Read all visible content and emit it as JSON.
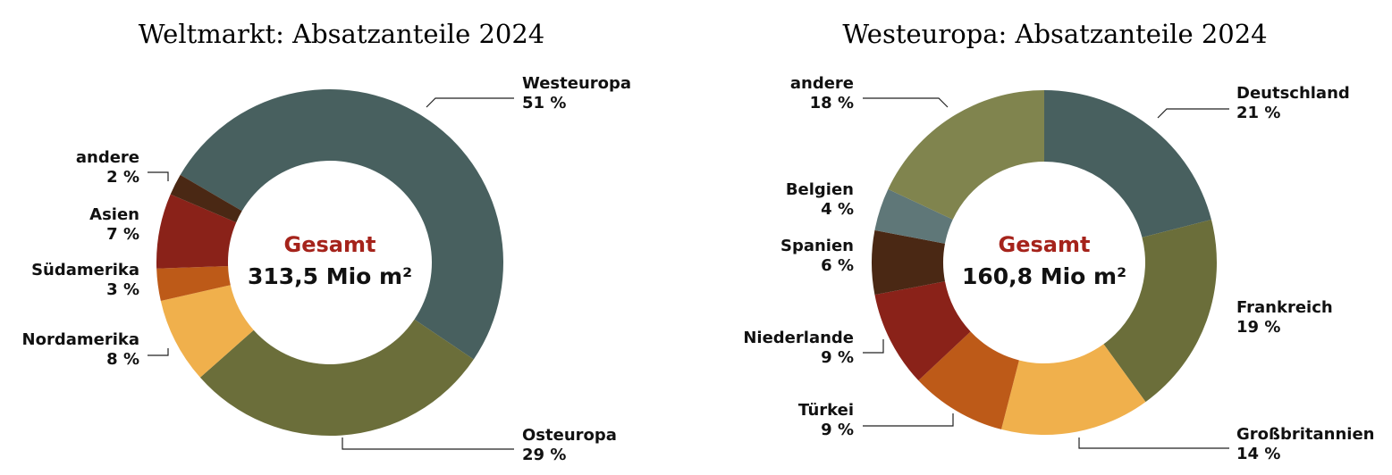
{
  "chart_data": [
    {
      "type": "donut",
      "title": "Weltmarkt: Absatzanteile 2024",
      "center_label": "Gesamt",
      "total_label": "313,5 Mio m²",
      "categories": [
        "Westeuropa",
        "Osteuropa",
        "Nordamerika",
        "Südamerika",
        "Asien",
        "andere"
      ],
      "values": [
        51,
        29,
        8,
        3,
        7,
        2
      ],
      "value_labels": [
        "51 %",
        "29 %",
        "8 %",
        "3 %",
        "7 %",
        "2 %"
      ],
      "colors": [
        "#48605f",
        "#6b6e3a",
        "#f0b04c",
        "#bd5a18",
        "#8a2219",
        "#4a2814"
      ]
    },
    {
      "type": "donut",
      "title": "Westeuropa: Absatzanteile 2024",
      "center_label": "Gesamt",
      "total_label": "160,8 Mio m²",
      "categories": [
        "Deutschland",
        "Frankreich",
        "Großbritannien",
        "Türkei",
        "Niederlande",
        "Spanien",
        "Belgien",
        "andere"
      ],
      "values": [
        21,
        19,
        14,
        9,
        9,
        6,
        4,
        18
      ],
      "value_labels": [
        "21 %",
        "19 %",
        "14 %",
        "9 %",
        "9 %",
        "6 %",
        "4 %",
        "18 %"
      ],
      "colors": [
        "#48605f",
        "#6b6e3a",
        "#f0b04c",
        "#bd5a18",
        "#8a2219",
        "#4a2814",
        "#5f7778",
        "#80844e"
      ]
    }
  ]
}
